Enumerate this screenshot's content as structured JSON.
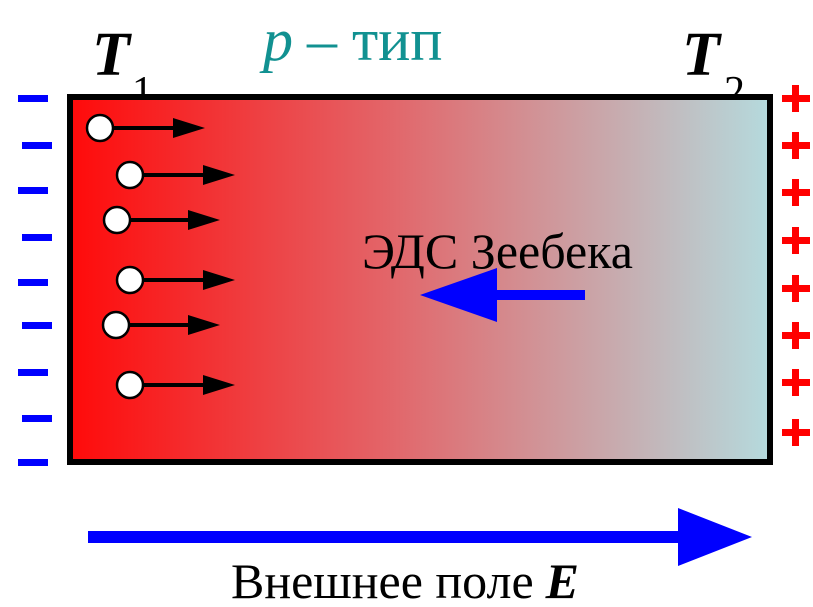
{
  "title": {
    "variable": "p",
    "text": "– тип"
  },
  "left_temperature": {
    "symbol": "T",
    "subscript": "1"
  },
  "right_temperature": {
    "symbol": "T",
    "subscript": "2"
  },
  "seebeck_label": "ЭДС Зеебека",
  "field_label": {
    "text": "Внешнее поле",
    "symbol": "E"
  }
}
